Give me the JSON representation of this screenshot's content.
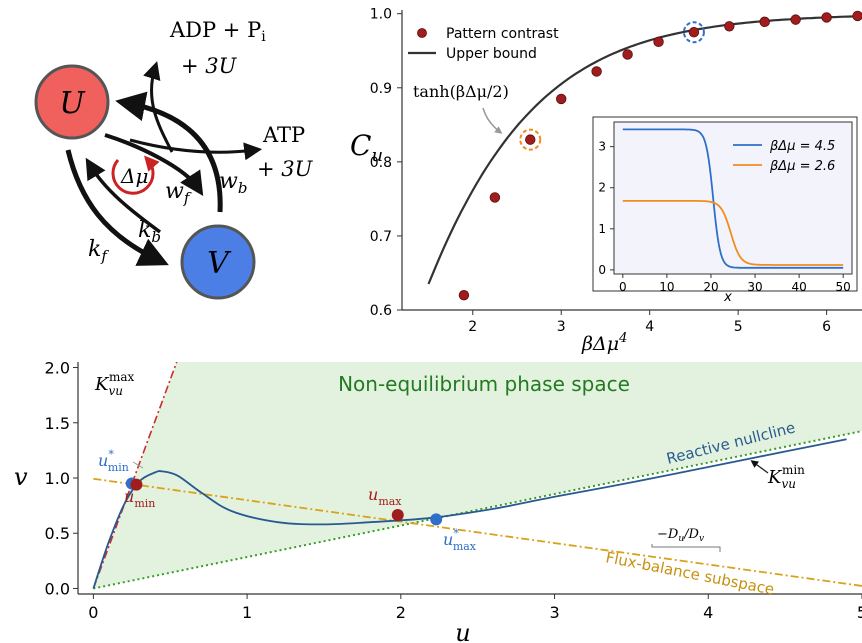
{
  "scheme": {
    "node_u": "U",
    "node_v": "V",
    "adp_line1": "ADP + P",
    "adp_sub": "i",
    "adp_line2": "+ 3U",
    "atp_line1": "ATP",
    "atp_line2": "+ 3U",
    "delta_mu": "Δμ",
    "w_f": "w",
    "w_f_sub": "f",
    "w_b": "w",
    "w_b_sub": "b",
    "k_b": "k",
    "k_b_sub": "b",
    "k_f": "k",
    "k_f_sub": "f",
    "colors": {
      "node_u": "#f0605d",
      "node_v": "#4c7fe6",
      "delta_mu_arrow": "#cc2222"
    }
  },
  "chart_data": [
    {
      "type": "scatter",
      "xlabel": "βΔμ",
      "xlabel_superscript": "4",
      "ylabel": "C",
      "ylabel_sub": "u",
      "xlim": [
        1.2,
        6.4
      ],
      "ylim": [
        0.6,
        1.005
      ],
      "xticks": [
        "2",
        "3",
        "4",
        "5",
        "6"
      ],
      "yticks": [
        "0.6",
        "0.7",
        "0.8",
        "0.9",
        "1.0"
      ],
      "legend": {
        "position": "top-left",
        "entries": [
          "Pattern contrast",
          "Upper bound"
        ]
      },
      "annotation": "tanh(βΔμ/2)",
      "series": [
        {
          "name": "Pattern contrast",
          "kind": "points",
          "color": "#a11d1d",
          "points": [
            [
              1.9,
              0.62
            ],
            [
              2.25,
              0.752
            ],
            [
              2.65,
              0.83
            ],
            [
              3.0,
              0.885
            ],
            [
              3.4,
              0.922
            ],
            [
              3.75,
              0.945
            ],
            [
              4.1,
              0.962
            ],
            [
              4.5,
              0.975
            ],
            [
              4.9,
              0.983
            ],
            [
              5.3,
              0.989
            ],
            [
              5.65,
              0.992
            ],
            [
              6.0,
              0.995
            ],
            [
              6.35,
              0.997
            ]
          ],
          "highlighted": [
            {
              "x": 2.65,
              "y": 0.83,
              "color": "#f28c1e"
            },
            {
              "x": 4.5,
              "y": 0.975,
              "color": "#2f6fc9"
            }
          ]
        },
        {
          "name": "Upper bound",
          "kind": "line",
          "color": "#333333",
          "formula": "tanh(x/2)",
          "x_range": [
            1.5,
            6.4
          ]
        }
      ]
    },
    {
      "type": "line",
      "xlabel": "x",
      "xlim": [
        -2,
        52
      ],
      "ylim": [
        -0.1,
        3.6
      ],
      "xticks": [
        "0",
        "10",
        "20",
        "30",
        "40",
        "50"
      ],
      "yticks": [
        "0",
        "1",
        "2",
        "3"
      ],
      "legend": {
        "position": "top-right",
        "entries": [
          "βΔμ = 4.5",
          "βΔμ = 2.6"
        ]
      },
      "series": [
        {
          "name": "βΔμ = 4.5",
          "color": "#2f6fc9",
          "high": 3.42,
          "low": 0.05,
          "midpoint": 20.5,
          "width": 0.8,
          "x_end": 50
        },
        {
          "name": "βΔμ = 2.6",
          "color": "#f28c1e",
          "high": 1.68,
          "low": 0.12,
          "midpoint": 24.5,
          "width": 1.1,
          "x_end": 50
        }
      ]
    },
    {
      "type": "line",
      "title": "Non-equilibrium phase space",
      "xlabel": "u",
      "ylabel": "v",
      "xlim": [
        -0.1,
        5.0
      ],
      "ylim": [
        -0.05,
        2.05
      ],
      "xticks": [
        "0",
        "1",
        "2",
        "3",
        "4",
        "5"
      ],
      "yticks": [
        "0.0",
        "0.5",
        "1.0",
        "1.5",
        "2.0"
      ],
      "shaded_region_color": "#e3f2de",
      "series": [
        {
          "name": "Reactive nullcline",
          "color": "#285a91",
          "points": [
            [
              0,
              0
            ],
            [
              0.1,
              0.42
            ],
            [
              0.2,
              0.76
            ],
            [
              0.3,
              0.97
            ],
            [
              0.4,
              1.05
            ],
            [
              0.45,
              1.06
            ],
            [
              0.55,
              1.02
            ],
            [
              0.7,
              0.87
            ],
            [
              0.9,
              0.7
            ],
            [
              1.2,
              0.6
            ],
            [
              1.5,
              0.58
            ],
            [
              1.8,
              0.6
            ],
            [
              2.2,
              0.64
            ],
            [
              2.6,
              0.72
            ],
            [
              3.0,
              0.83
            ],
            [
              3.5,
              0.96
            ],
            [
              4.0,
              1.1
            ],
            [
              4.5,
              1.24
            ],
            [
              4.9,
              1.35
            ]
          ]
        },
        {
          "name": "Flux-balance subspace",
          "color": "#d9a21b",
          "slope": -0.194,
          "intercept": 0.993
        },
        {
          "name": "K_vu^min",
          "color": "#3a9a2a",
          "slope": 0.285,
          "intercept": 0
        },
        {
          "name": "K_vu^max",
          "color": "#cc2b2b",
          "slope": 3.78,
          "intercept": 0
        }
      ],
      "points": [
        {
          "label": "u*_min",
          "x": 0.25,
          "y": 0.95,
          "color": "#2f6fc9"
        },
        {
          "label": "u_min",
          "x": 0.28,
          "y": 0.94,
          "color": "#a11d1d"
        },
        {
          "label": "u_max",
          "x": 1.98,
          "y": 0.665,
          "color": "#a11d1d"
        },
        {
          "label": "u*_max",
          "x": 2.23,
          "y": 0.625,
          "color": "#2f6fc9"
        }
      ],
      "labels": {
        "reactive_nullcline": "Reactive nullcline",
        "flux_balance": "Flux-balance subspace",
        "k_min": "K",
        "k_min_sub": "vu",
        "k_min_sup": "min",
        "k_max": "K",
        "k_max_sub": "vu",
        "k_max_sup": "max",
        "slope_label": "−D",
        "slope_label_sub_u": "u",
        "slope_label_sep": "/D",
        "slope_label_sub_v": "v",
        "u_min": "u",
        "u_min_sub": "min",
        "u_max": "u",
        "u_max_sub": "max",
        "u_star_min": "u",
        "u_star_min_sub": "min",
        "u_star_max": "u",
        "u_star_max_sub": "max",
        "star": "*"
      }
    }
  ]
}
